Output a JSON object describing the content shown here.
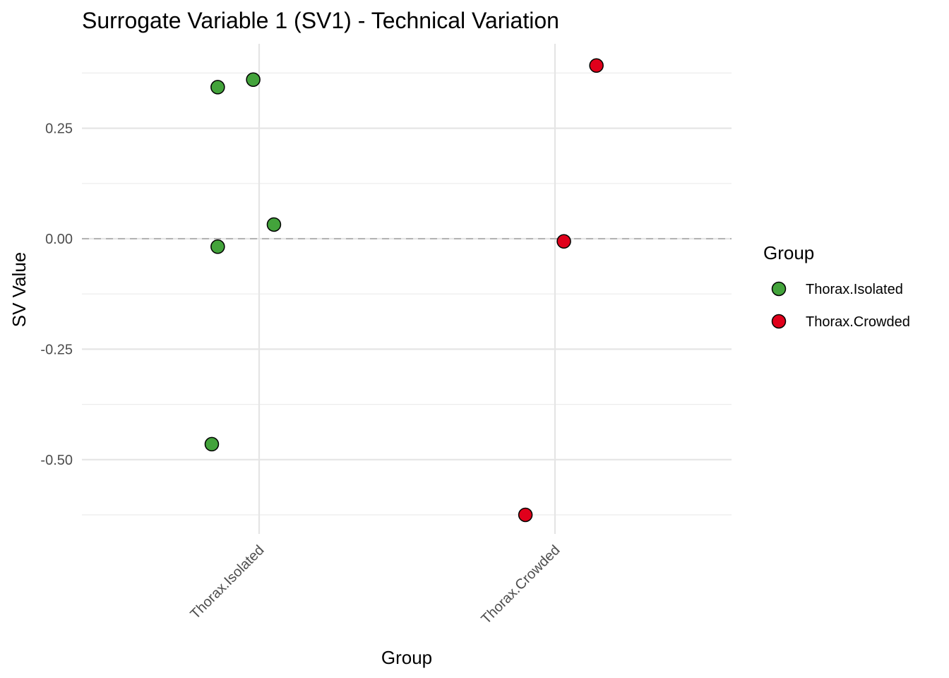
{
  "chart_data": {
    "type": "scatter",
    "title": "Surrogate Variable 1 (SV1) - Technical Variation",
    "xlabel": "Group",
    "ylabel": "SV Value",
    "categories": [
      "Thorax.Isolated",
      "Thorax.Crowded"
    ],
    "y_ticks": [
      0.25,
      0.0,
      -0.25,
      -0.5
    ],
    "y_tick_labels": [
      "0.25",
      "0.00",
      "-0.25",
      "-0.50"
    ],
    "ylim": [
      -0.63,
      0.41
    ],
    "reference_line": {
      "y": 0,
      "style": "dashed",
      "color": "#b3b3b3"
    },
    "grid": true,
    "legend": {
      "title": "Group",
      "position": "right",
      "entries": [
        {
          "label": "Thorax.Isolated",
          "color": "#43a33b"
        },
        {
          "label": "Thorax.Crowded",
          "color": "#e0001b"
        }
      ]
    },
    "series": [
      {
        "name": "Thorax.Isolated",
        "color": "#43a33b",
        "points": [
          {
            "x": "Thorax.Isolated",
            "jitter": -0.14,
            "y": 0.343
          },
          {
            "x": "Thorax.Isolated",
            "jitter": -0.02,
            "y": 0.36
          },
          {
            "x": "Thorax.Isolated",
            "jitter": 0.05,
            "y": 0.032
          },
          {
            "x": "Thorax.Isolated",
            "jitter": -0.14,
            "y": -0.018
          },
          {
            "x": "Thorax.Isolated",
            "jitter": -0.16,
            "y": -0.465
          }
        ]
      },
      {
        "name": "Thorax.Crowded",
        "color": "#e0001b",
        "points": [
          {
            "x": "Thorax.Crowded",
            "jitter": 0.14,
            "y": 0.392
          },
          {
            "x": "Thorax.Crowded",
            "jitter": 0.03,
            "y": -0.006
          },
          {
            "x": "Thorax.Crowded",
            "jitter": -0.1,
            "y": -0.625
          }
        ]
      }
    ]
  }
}
